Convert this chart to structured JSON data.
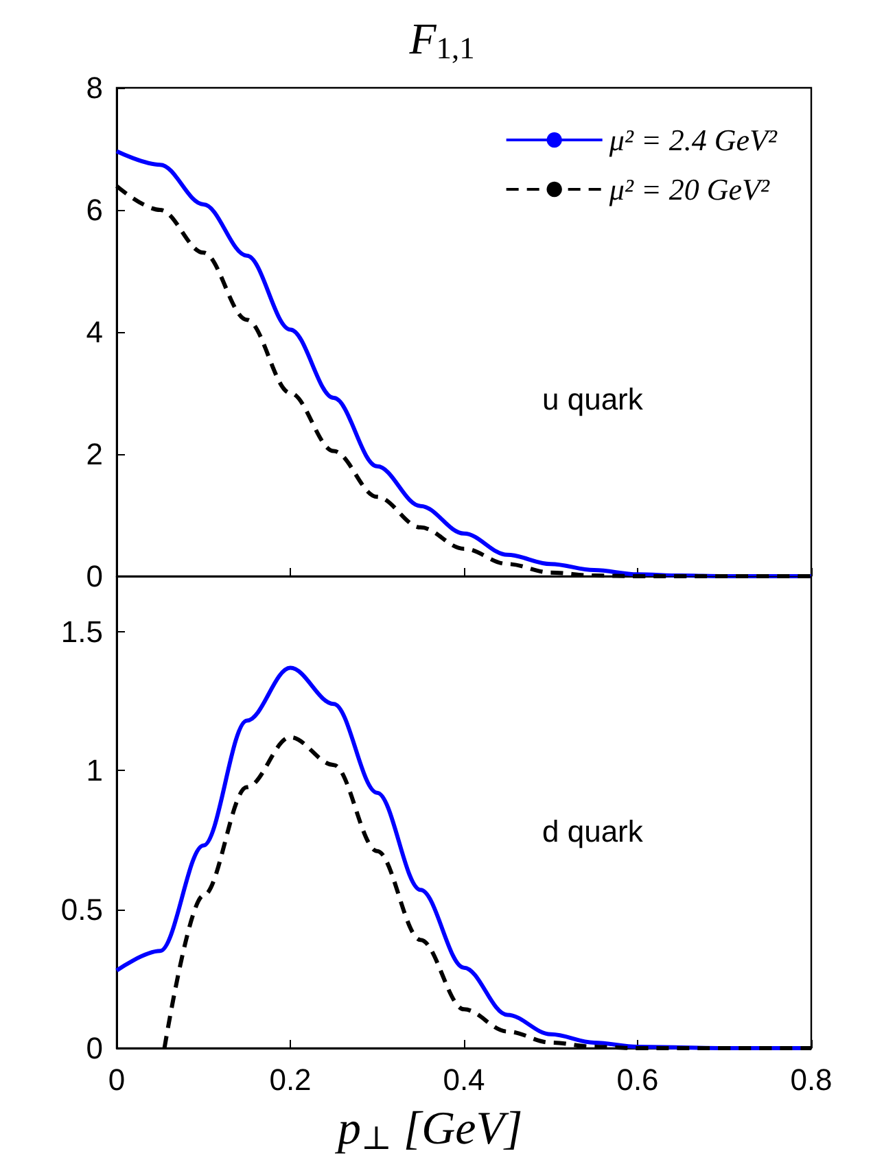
{
  "chart_data": [
    {
      "type": "line",
      "title": "F$_{1,1}$",
      "x": [
        0,
        0.05,
        0.1,
        0.15,
        0.2,
        0.25,
        0.3,
        0.35,
        0.4,
        0.45,
        0.5,
        0.55,
        0.6,
        0.65,
        0.7,
        0.8
      ],
      "series": [
        {
          "name": "μ² = 2.4 GeV²",
          "color": "#0000ff",
          "line_style": "solid",
          "values": [
            6.96,
            6.74,
            6.09,
            5.25,
            4.04,
            2.92,
            1.8,
            1.15,
            0.7,
            0.35,
            0.2,
            0.1,
            0.03,
            0.01,
            0,
            0
          ]
        },
        {
          "name": "μ² = 20 GeV²",
          "color": "#000000",
          "line_style": "dashed",
          "values": [
            6.39,
            6.0,
            5.3,
            4.2,
            3.0,
            2.05,
            1.3,
            0.8,
            0.45,
            0.2,
            0.06,
            0.01,
            0,
            0,
            0,
            0
          ]
        }
      ],
      "xlim": [
        0,
        0.8
      ],
      "xticks": [
        0,
        0.2,
        0.4,
        0.6,
        0.8
      ],
      "ylim": [
        0,
        8
      ],
      "yticks": [
        0,
        2,
        4,
        6,
        8
      ],
      "tick_labels": "y",
      "legend": "top right",
      "annotations": [
        "u quark"
      ]
    },
    {
      "type": "line",
      "xlabel": "p$_{⊥}$ [GeV]",
      "series": [
        {
          "color": "#0000ff",
          "line_style": "solid",
          "x": [
            0,
            0.05,
            0.1,
            0.15,
            0.2,
            0.25,
            0.3,
            0.35,
            0.4,
            0.45,
            0.5,
            0.55,
            0.6,
            0.7,
            0.8
          ],
          "values": [
            0.28,
            0.35,
            0.73,
            1.18,
            1.37,
            1.24,
            0.92,
            0.57,
            0.29,
            0.12,
            0.05,
            0.02,
            0.005,
            0,
            0
          ]
        },
        {
          "color": "#000000",
          "line_style": "dashed",
          "x": [
            0.055,
            0.1,
            0.15,
            0.2,
            0.25,
            0.3,
            0.35,
            0.4,
            0.45,
            0.5,
            0.55,
            0.6,
            0.7,
            0.8
          ],
          "values": [
            0,
            0.55,
            0.94,
            1.12,
            1.02,
            0.71,
            0.39,
            0.14,
            0.06,
            0.02,
            0.005,
            0,
            0,
            0
          ]
        }
      ],
      "xlim": [
        0,
        0.8
      ],
      "xticks": [
        0,
        0.2,
        0.4,
        0.6,
        0.8
      ],
      "ylim": [
        0,
        1.7
      ],
      "yticks": [
        0,
        0.5,
        1,
        1.5
      ],
      "annotations": [
        "d quark"
      ]
    }
  ]
}
